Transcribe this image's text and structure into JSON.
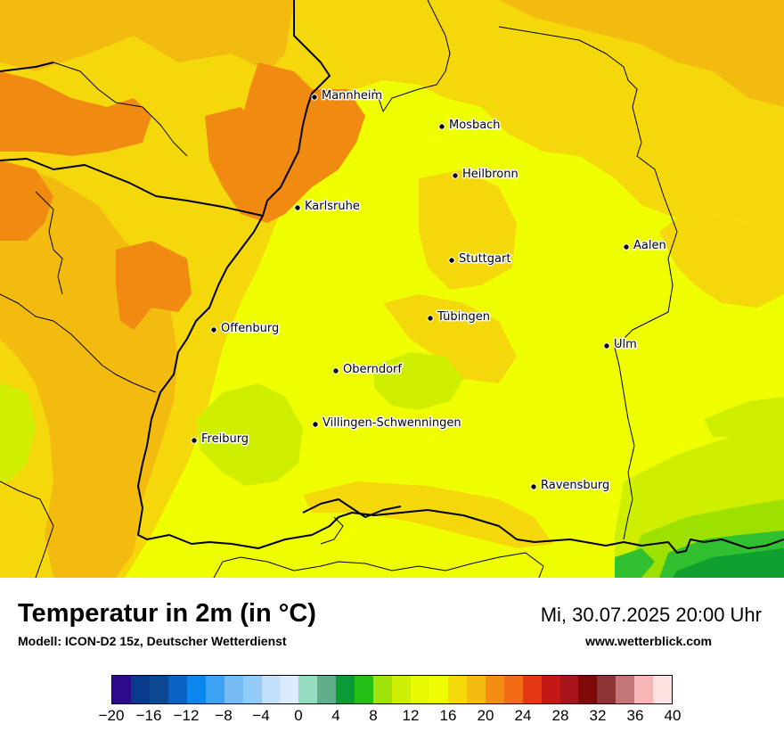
{
  "map": {
    "cities": [
      {
        "name": "Mannheim"
      },
      {
        "name": "Mosbach"
      },
      {
        "name": "Heilbronn"
      },
      {
        "name": "Karlsruhe"
      },
      {
        "name": "Aalen"
      },
      {
        "name": "Stuttgart"
      },
      {
        "name": "Tübingen"
      },
      {
        "name": "Offenburg"
      },
      {
        "name": "Ulm"
      },
      {
        "name": "Oberndorf"
      },
      {
        "name": "Villingen-Schwenningen"
      },
      {
        "name": "Freiburg"
      },
      {
        "name": "Ravensburg"
      }
    ],
    "colors": {
      "base": "#f0ff00",
      "warm": "#f4d80c",
      "warmer": "#f3bb10",
      "hot": "#f08a10",
      "cool": "#cfee00",
      "cooler": "#9ee000",
      "green": "#30c030",
      "darkgreen": "#10a030",
      "border": "#000000"
    }
  },
  "footer": {
    "title": "Temperatur in 2m (in °C)",
    "model": "Modell: ICON-D2 15z, Deutscher Wetterdienst",
    "datetime": "Mi, 30.07.2025 20:00 Uhr",
    "website": "www.wetterblick.com"
  },
  "legend": {
    "colors": [
      "#2e0b8a",
      "#0a3a8c",
      "#0b4891",
      "#0a63c4",
      "#0a86ec",
      "#3ba2f4",
      "#75bcf6",
      "#93cbf8",
      "#c2e0fb",
      "#d9ebfc",
      "#96dcc0",
      "#62ae8a",
      "#089b38",
      "#22c016",
      "#a1e20a",
      "#cdef06",
      "#e7fa04",
      "#f0fd00",
      "#f4da0b",
      "#f4bc10",
      "#f38e13",
      "#f26c17",
      "#e63714",
      "#c21916",
      "#a8141c",
      "#7e0909",
      "#8c3333",
      "#c37677",
      "#f7b7b7",
      "#fde1e1"
    ],
    "ticks": [
      "−20",
      "−16",
      "−12",
      "−8",
      "−4",
      "0",
      "4",
      "8",
      "12",
      "16",
      "20",
      "24",
      "28",
      "32",
      "36",
      "40"
    ]
  }
}
